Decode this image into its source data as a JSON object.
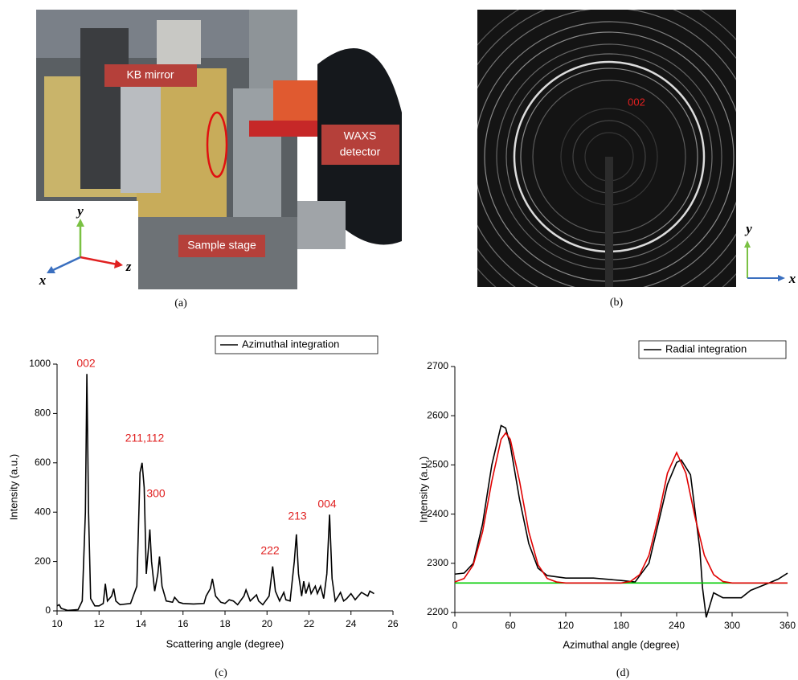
{
  "figure_a": {
    "labels": [
      "KB mirror",
      "Sample stage"
    ],
    "detector_label": [
      "WAXS",
      "detector"
    ],
    "axes": [
      "y",
      "z",
      "x"
    ],
    "caption": "(a)"
  },
  "figure_b": {
    "label": "002",
    "axes": [
      "y",
      "x"
    ],
    "caption": "(b)"
  },
  "chart_data": [
    {
      "type": "line",
      "caption": "(c)",
      "x_label": "Scattering angle (degree)",
      "y_label": "Intensity (a.u.)",
      "legend": "Azimuthal integration",
      "color": "#000000",
      "annotations": [
        "002",
        "211,112",
        "300",
        "222",
        "213",
        "004"
      ],
      "annotation_color": "#e02020",
      "x": [
        10,
        10.1,
        10.2,
        10.5,
        11,
        11.2,
        11.35,
        11.42,
        11.5,
        11.6,
        11.8,
        12,
        12.2,
        12.3,
        12.4,
        12.6,
        12.7,
        12.8,
        13,
        13.5,
        13.8,
        13.95,
        14.05,
        14.15,
        14.25,
        14.35,
        14.42,
        14.5,
        14.65,
        14.8,
        14.88,
        15,
        15.2,
        15.5,
        15.6,
        15.8,
        16,
        16.5,
        17,
        17.1,
        17.3,
        17.4,
        17.55,
        17.8,
        18,
        18.2,
        18.4,
        18.6,
        18.9,
        19,
        19.2,
        19.5,
        19.6,
        19.8,
        20.1,
        20.27,
        20.4,
        20.6,
        20.8,
        20.9,
        21.1,
        21.3,
        21.4,
        21.5,
        21.65,
        21.75,
        21.85,
        22,
        22.1,
        22.3,
        22.4,
        22.55,
        22.7,
        22.85,
        22.98,
        23.1,
        23.25,
        23.4,
        23.5,
        23.65,
        23.8,
        24,
        24.2,
        24.5,
        24.8,
        24.9,
        25.1
      ],
      "values": [
        20,
        25,
        10,
        2,
        5,
        40,
        400,
        960,
        400,
        50,
        20,
        20,
        30,
        110,
        40,
        60,
        90,
        40,
        25,
        30,
        100,
        560,
        600,
        500,
        150,
        250,
        330,
        200,
        80,
        150,
        220,
        100,
        40,
        35,
        55,
        35,
        30,
        28,
        30,
        60,
        90,
        130,
        60,
        35,
        30,
        45,
        40,
        25,
        60,
        85,
        40,
        65,
        40,
        25,
        60,
        180,
        80,
        40,
        75,
        45,
        40,
        200,
        310,
        150,
        60,
        120,
        70,
        110,
        70,
        100,
        70,
        100,
        50,
        150,
        390,
        130,
        40,
        60,
        75,
        40,
        50,
        70,
        45,
        75,
        60,
        80,
        70
      ],
      "xlim": [
        10,
        26
      ],
      "xticks": [
        10,
        12,
        14,
        16,
        18,
        20,
        22,
        24,
        26
      ],
      "ylim": [
        0,
        1000
      ],
      "yticks": [
        0,
        200,
        400,
        600,
        800,
        1000
      ]
    },
    {
      "type": "line",
      "caption": "(d)",
      "x_label": "Azimuthal angle (degree)",
      "y_label": "Intensity (a.u.)",
      "series": [
        {
          "name": "Radial integration",
          "color": "#000000",
          "x": [
            0,
            10,
            20,
            30,
            40,
            50,
            55,
            60,
            70,
            80,
            90,
            100,
            120,
            150,
            180,
            195,
            210,
            220,
            230,
            240,
            245,
            255,
            265,
            268,
            272,
            280,
            290,
            310,
            320,
            340,
            350,
            360
          ],
          "values": [
            2278,
            2280,
            2300,
            2380,
            2500,
            2580,
            2575,
            2540,
            2430,
            2340,
            2290,
            2275,
            2270,
            2270,
            2265,
            2262,
            2300,
            2380,
            2460,
            2505,
            2510,
            2480,
            2330,
            2250,
            2190,
            2240,
            2230,
            2230,
            2245,
            2260,
            2268,
            2280
          ]
        },
        {
          "color": "#00cc00",
          "x": [
            0,
            360
          ],
          "values": [
            2260,
            2260
          ]
        },
        {
          "color": "#e00000",
          "x": [
            0,
            10,
            20,
            30,
            40,
            50,
            55,
            60,
            70,
            80,
            90,
            100,
            110,
            120,
            180,
            190,
            200,
            210,
            220,
            230,
            240,
            250,
            260,
            270,
            280,
            290,
            300,
            360
          ],
          "values": [
            2262,
            2269,
            2297,
            2364,
            2467,
            2552,
            2565,
            2552,
            2467,
            2364,
            2297,
            2269,
            2262,
            2260,
            2260,
            2263,
            2277,
            2316,
            2393,
            2483,
            2525,
            2483,
            2393,
            2316,
            2277,
            2263,
            2260,
            2260
          ]
        }
      ],
      "xlim": [
        0,
        360
      ],
      "xticks": [
        0,
        60,
        120,
        180,
        240,
        300,
        360
      ],
      "ylim": [
        2200,
        2700
      ],
      "yticks": [
        2200,
        2300,
        2400,
        2500,
        2600,
        2700
      ]
    }
  ]
}
